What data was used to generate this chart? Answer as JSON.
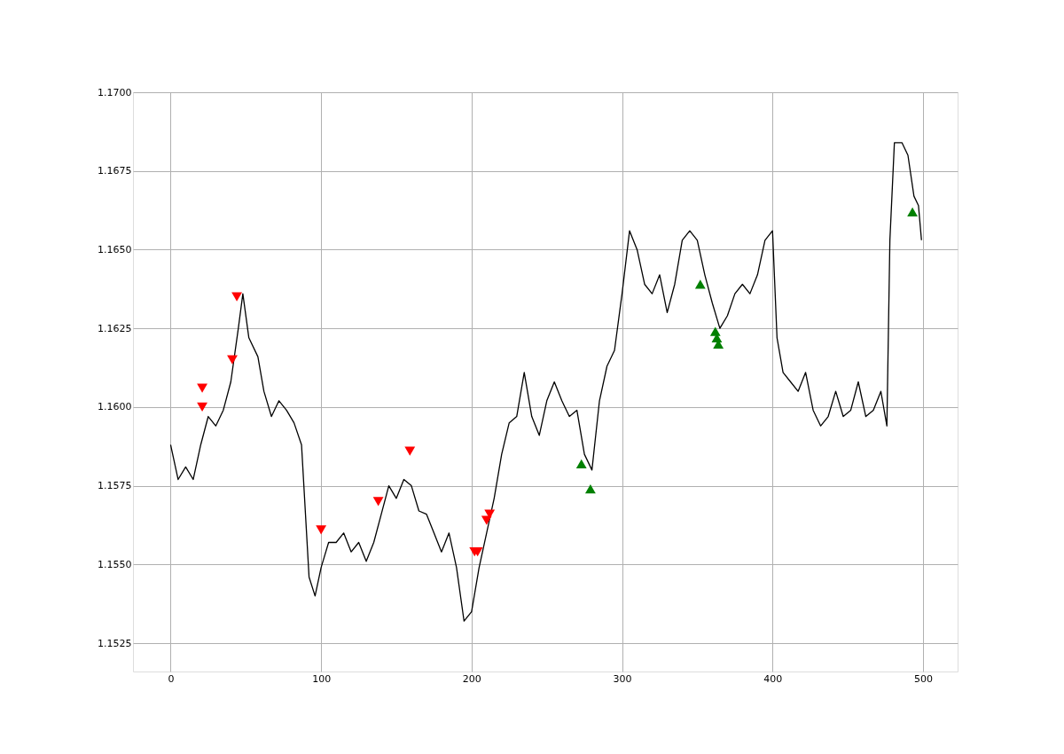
{
  "chart_data": {
    "type": "line",
    "xlim": [
      -25,
      523
    ],
    "ylim": [
      1.1516,
      1.17
    ],
    "xticks": [
      0,
      100,
      200,
      300,
      400,
      500
    ],
    "yticks": [
      {
        "value": 1.1525,
        "label": "1.1525"
      },
      {
        "value": 1.155,
        "label": "1.1550"
      },
      {
        "value": 1.1575,
        "label": "1.1575"
      },
      {
        "value": 1.16,
        "label": "1.1600"
      },
      {
        "value": 1.1625,
        "label": "1.1625"
      },
      {
        "value": 1.165,
        "label": "1.1650"
      },
      {
        "value": 1.1675,
        "label": "1.1675"
      },
      {
        "value": 1.17,
        "label": "1.1700"
      }
    ],
    "grid": true,
    "series": [
      {
        "color": "#000000",
        "marker": "none",
        "line_style": "solid",
        "x": [
          0,
          5,
          10,
          15,
          20,
          25,
          30,
          35,
          40,
          45,
          48,
          52,
          58,
          62,
          67,
          72,
          77,
          82,
          87,
          92,
          96,
          100,
          105,
          110,
          115,
          120,
          125,
          130,
          135,
          140,
          145,
          150,
          155,
          160,
          165,
          170,
          175,
          180,
          185,
          190,
          195,
          200,
          205,
          210,
          215,
          220,
          225,
          230,
          235,
          240,
          245,
          250,
          255,
          260,
          265,
          270,
          275,
          280,
          285,
          290,
          295,
          300,
          305,
          310,
          315,
          320,
          325,
          330,
          335,
          340,
          345,
          350,
          355,
          360,
          365,
          370,
          375,
          380,
          385,
          390,
          395,
          400,
          403,
          407,
          412,
          417,
          422,
          427,
          432,
          437,
          442,
          447,
          452,
          457,
          462,
          467,
          472,
          476,
          478,
          481,
          486,
          490,
          494,
          497,
          499
        ],
        "values": [
          1.1588,
          1.1577,
          1.1581,
          1.1577,
          1.1588,
          1.1597,
          1.1594,
          1.1599,
          1.1608,
          1.1625,
          1.1636,
          1.1622,
          1.1616,
          1.1605,
          1.1597,
          1.1602,
          1.1599,
          1.1595,
          1.1588,
          1.1546,
          1.154,
          1.1549,
          1.1557,
          1.1557,
          1.156,
          1.1554,
          1.1557,
          1.1551,
          1.1557,
          1.1566,
          1.1575,
          1.1571,
          1.1577,
          1.1575,
          1.1567,
          1.1566,
          1.156,
          1.1554,
          1.156,
          1.1549,
          1.1532,
          1.1535,
          1.1549,
          1.156,
          1.1571,
          1.1585,
          1.1595,
          1.1597,
          1.1611,
          1.1597,
          1.1591,
          1.1602,
          1.1608,
          1.1602,
          1.1597,
          1.1599,
          1.1585,
          1.158,
          1.1602,
          1.1613,
          1.1618,
          1.1636,
          1.1656,
          1.165,
          1.1639,
          1.1636,
          1.1642,
          1.163,
          1.1639,
          1.1653,
          1.1656,
          1.1653,
          1.1642,
          1.1633,
          1.1625,
          1.1629,
          1.1636,
          1.1639,
          1.1636,
          1.1642,
          1.1653,
          1.1656,
          1.1622,
          1.1611,
          1.1608,
          1.1605,
          1.1611,
          1.1599,
          1.1594,
          1.1597,
          1.1605,
          1.1597,
          1.1599,
          1.1608,
          1.1597,
          1.1599,
          1.1605,
          1.1594,
          1.1653,
          1.1684,
          1.1684,
          1.168,
          1.1667,
          1.1664,
          1.1653
        ]
      },
      {
        "type": "scatter",
        "color": "#ff0000",
        "marker": "triangle-down",
        "x": [
          21,
          21,
          41,
          44,
          100,
          138,
          159,
          202,
          204,
          210,
          212
        ],
        "values": [
          1.1606,
          1.16,
          1.1615,
          1.1635,
          1.1561,
          1.157,
          1.1586,
          1.1554,
          1.1554,
          1.1564,
          1.1566
        ]
      },
      {
        "type": "scatter",
        "color": "#008000",
        "marker": "triangle",
        "x": [
          273,
          279,
          352,
          362,
          363,
          364,
          493
        ],
        "values": [
          1.1582,
          1.1574,
          1.1639,
          1.1624,
          1.1622,
          1.162,
          1.1662
        ]
      }
    ]
  }
}
